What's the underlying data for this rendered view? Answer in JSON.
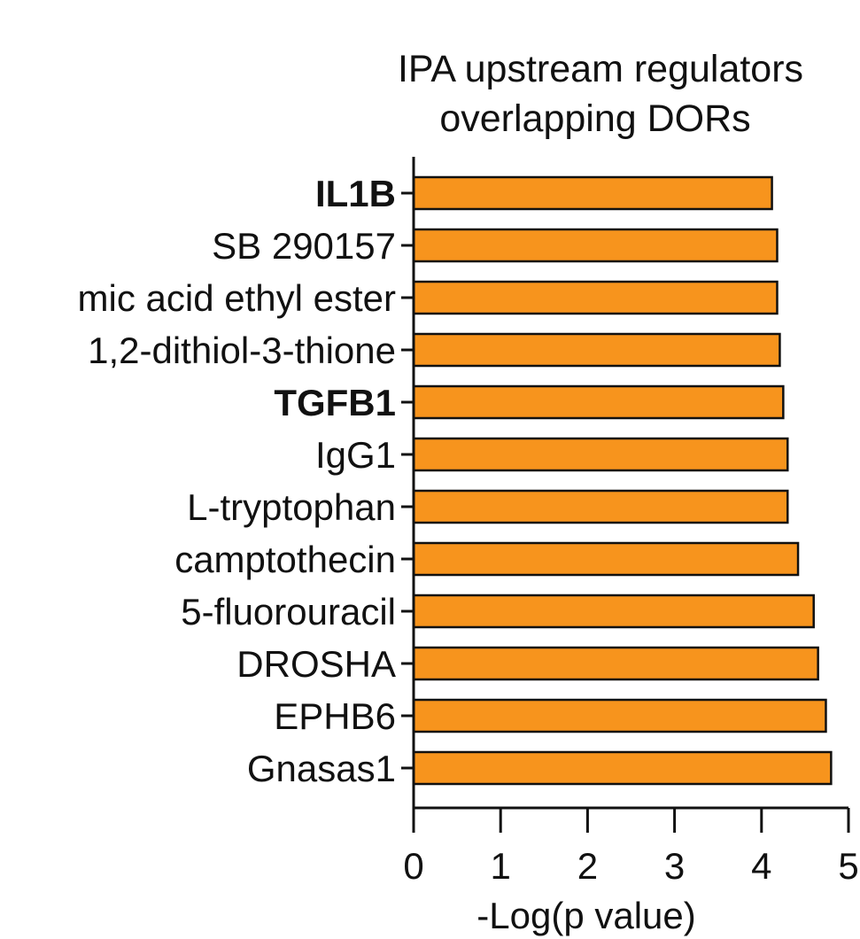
{
  "chart_data": {
    "type": "bar",
    "orientation": "horizontal",
    "title": [
      "IPA upstream regulators",
      "overlapping DORs"
    ],
    "xlabel": "-Log(p value)",
    "ylabel": "",
    "xlim": [
      0,
      5
    ],
    "xticks": [
      "0",
      "1",
      "2",
      "3",
      "4",
      "5"
    ],
    "bar_color": "#F7941D",
    "grid": false,
    "categories": [
      "IL1B",
      "SB 290157",
      "mic acid ethyl ester",
      "1,2-dithiol-3-thione",
      "TGFB1",
      "IgG1",
      "L-tryptophan",
      "camptothecin",
      "5-fluorouracil",
      "DROSHA",
      "EPHB6",
      "Gnasas1"
    ],
    "bold_categories": [
      "IL1B",
      "TGFB1"
    ],
    "values": [
      4.12,
      4.18,
      4.18,
      4.21,
      4.25,
      4.3,
      4.3,
      4.42,
      4.6,
      4.65,
      4.74,
      4.8
    ]
  }
}
